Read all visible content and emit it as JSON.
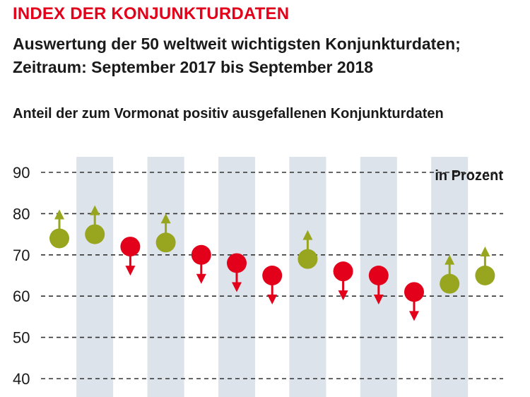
{
  "header": {
    "kicker": "INDEX DER KONJUNKTURDATEN",
    "title_line1": "Auswertung der 50 weltweit wichtigsten Konjunkturdaten;",
    "title_line2": "Zeitraum: September 2017 bis September 2018",
    "subtitle": "Anteil der zum Vormonat positiv ausgefallenen Konjunkturdaten"
  },
  "colors": {
    "up": "#97a61e",
    "down": "#e2001a",
    "band": "#dce3ea",
    "grid": "#333333",
    "text": "#1a1a1a"
  },
  "chart_data": {
    "type": "scatter",
    "unit_label": "in Prozent",
    "ylim": [
      40,
      90
    ],
    "yticks": [
      40,
      50,
      60,
      70,
      80,
      90
    ],
    "grid": "dashed horizontal",
    "alternating_bands": true,
    "points": [
      {
        "value": 74,
        "direction": "up"
      },
      {
        "value": 75,
        "direction": "up"
      },
      {
        "value": 72,
        "direction": "down"
      },
      {
        "value": 73,
        "direction": "up"
      },
      {
        "value": 70,
        "direction": "down"
      },
      {
        "value": 68,
        "direction": "down"
      },
      {
        "value": 65,
        "direction": "down"
      },
      {
        "value": 69,
        "direction": "up"
      },
      {
        "value": 66,
        "direction": "down"
      },
      {
        "value": 65,
        "direction": "down"
      },
      {
        "value": 61,
        "direction": "down"
      },
      {
        "value": 63,
        "direction": "up"
      },
      {
        "value": 65,
        "direction": "up"
      }
    ]
  }
}
